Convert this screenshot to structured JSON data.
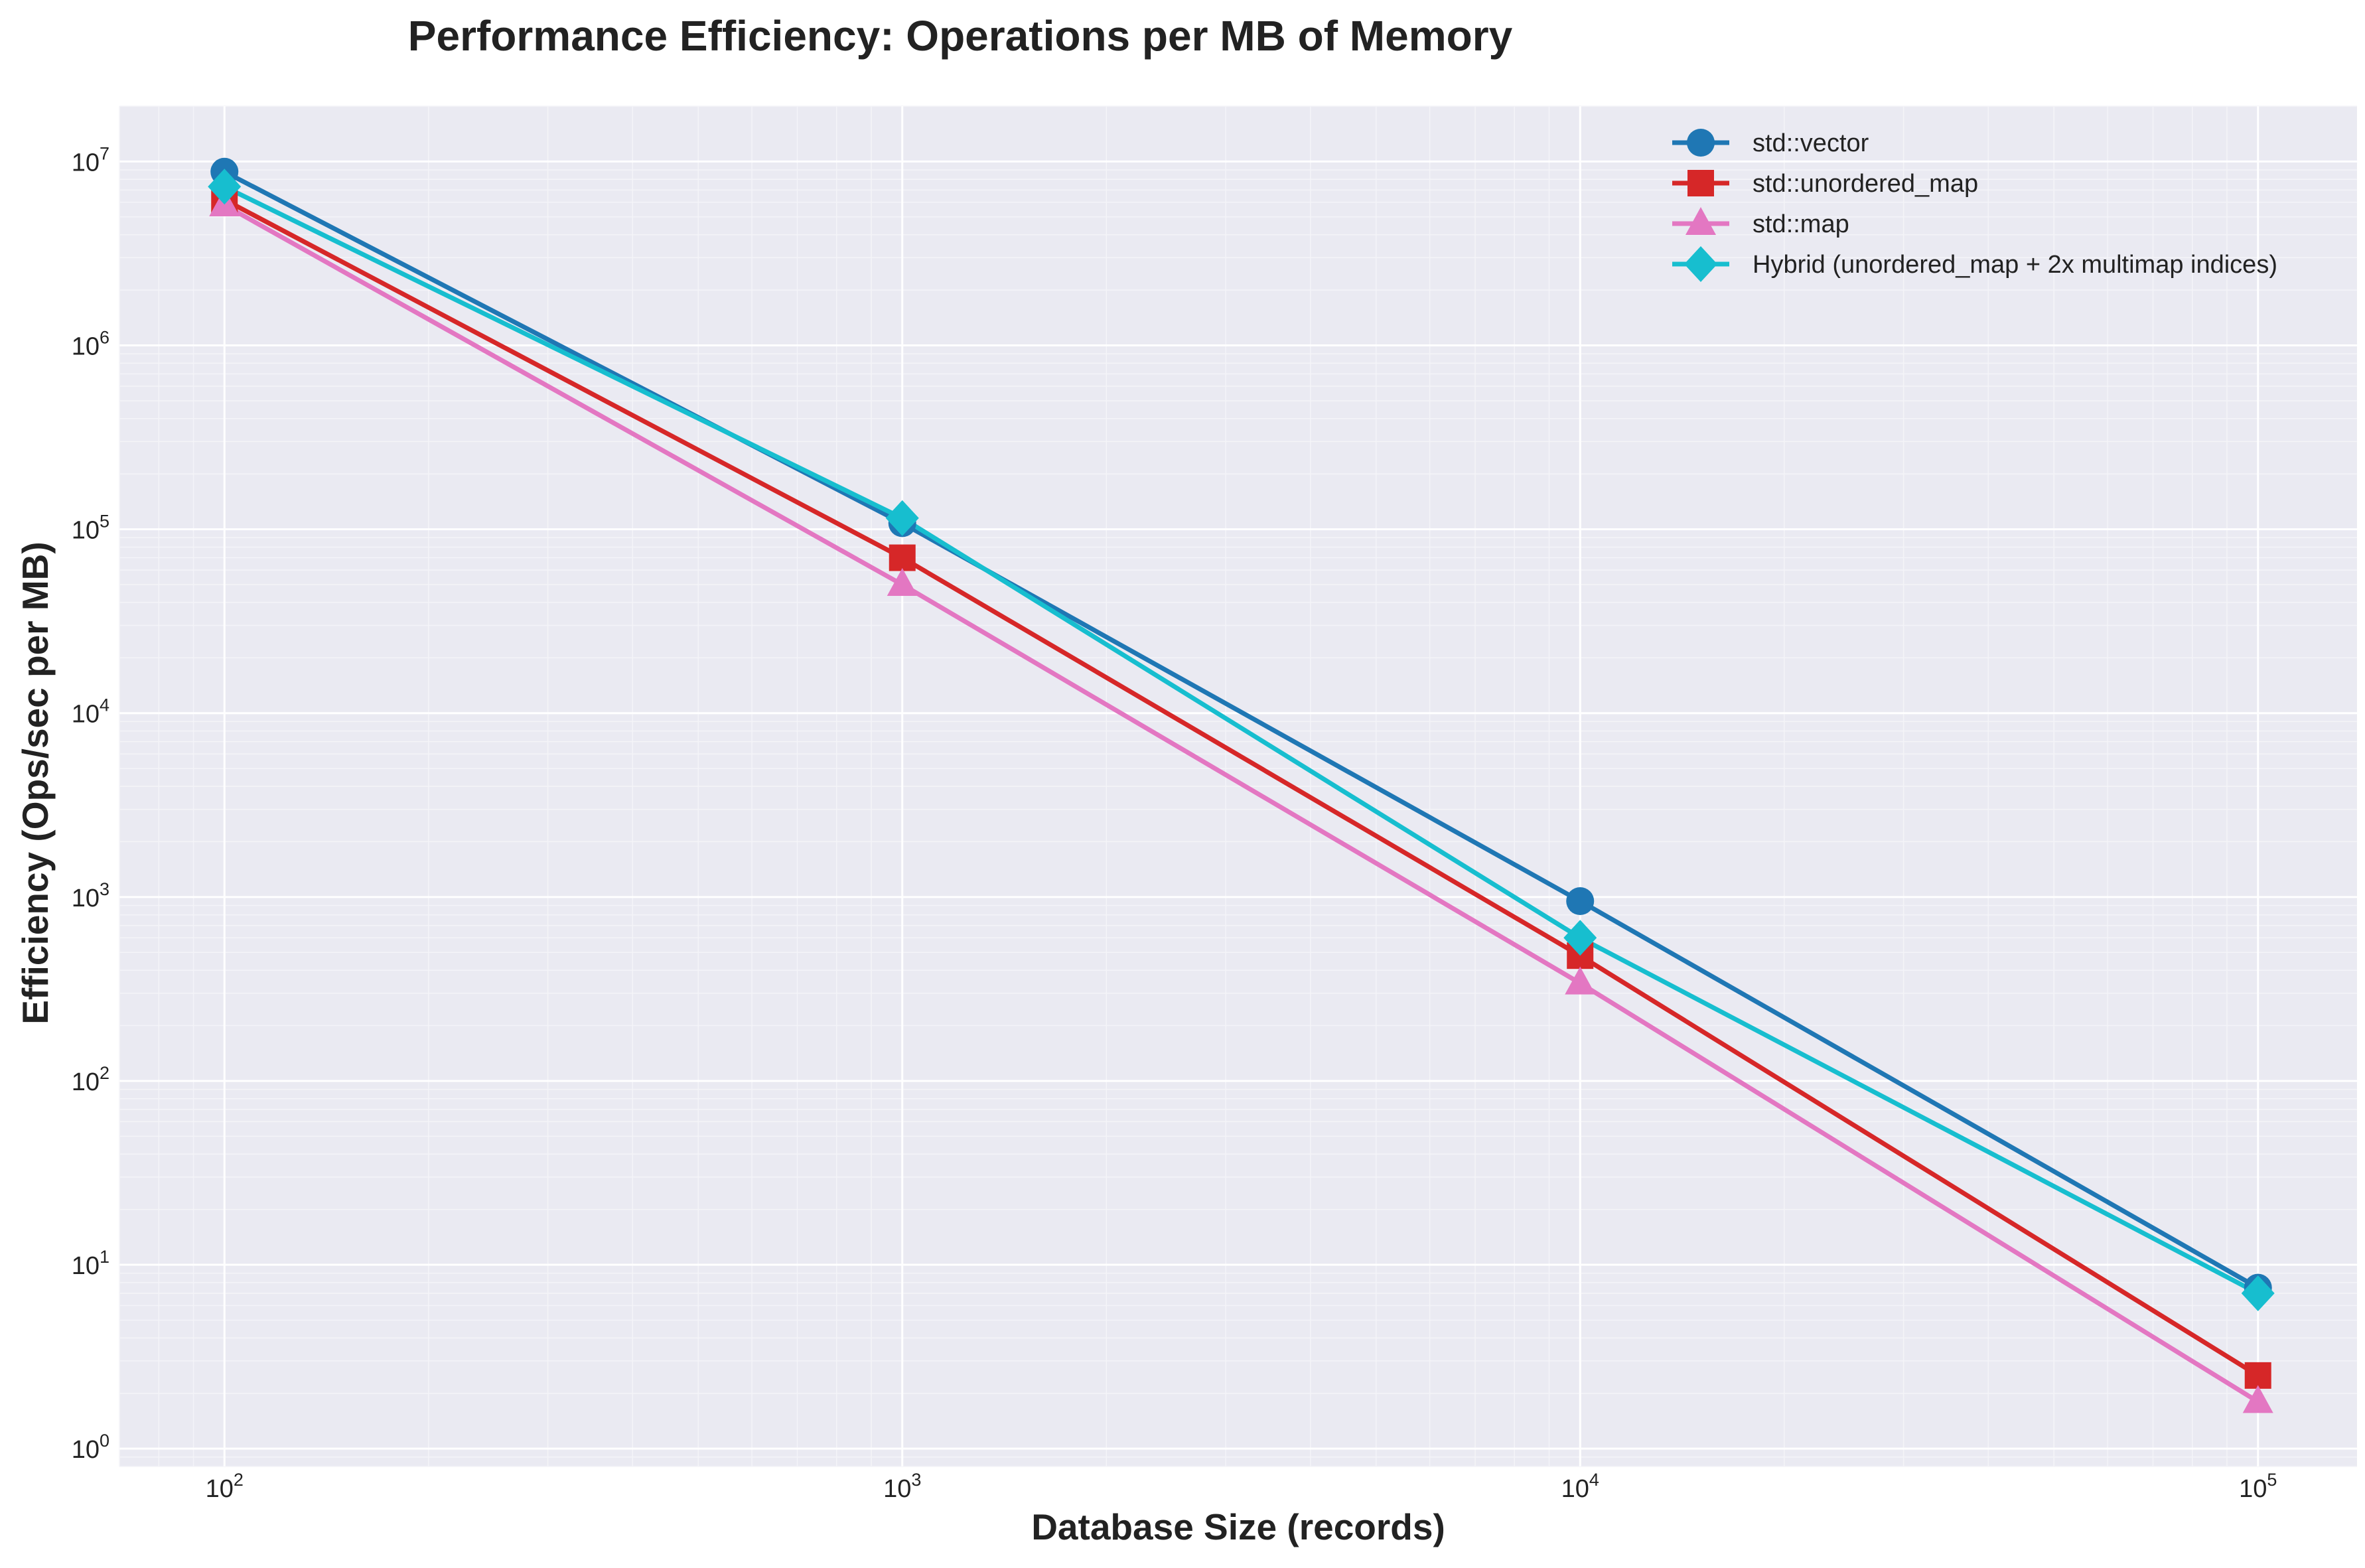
{
  "chart_data": {
    "type": "line",
    "title": "Performance Efficiency: Operations per MB of Memory",
    "xlabel": "Database Size (records)",
    "ylabel": "Efficiency (Ops/sec per MB)",
    "x_scale": "log",
    "y_scale": "log",
    "xlim": [
      70,
      140000
    ],
    "ylim": [
      0.8,
      20000000
    ],
    "x": [
      100,
      1000,
      10000,
      100000
    ],
    "x_ticks": [
      {
        "value": 100,
        "base": "10",
        "exp": "2"
      },
      {
        "value": 1000,
        "base": "10",
        "exp": "3"
      },
      {
        "value": 10000,
        "base": "10",
        "exp": "4"
      },
      {
        "value": 100000,
        "base": "10",
        "exp": "5"
      }
    ],
    "y_ticks": [
      {
        "value": 1,
        "base": "10",
        "exp": "0"
      },
      {
        "value": 10,
        "base": "10",
        "exp": "1"
      },
      {
        "value": 100,
        "base": "10",
        "exp": "2"
      },
      {
        "value": 1000,
        "base": "10",
        "exp": "3"
      },
      {
        "value": 10000,
        "base": "10",
        "exp": "4"
      },
      {
        "value": 100000,
        "base": "10",
        "exp": "5"
      },
      {
        "value": 1000000,
        "base": "10",
        "exp": "6"
      },
      {
        "value": 10000000,
        "base": "10",
        "exp": "7"
      }
    ],
    "grid": true,
    "legend_position": "top-right",
    "background_color": "#eaeaf2",
    "series": [
      {
        "name": "std::vector",
        "color": "#1f77b4",
        "marker": "circle",
        "values": [
          8800000,
          108000,
          950,
          7.5
        ]
      },
      {
        "name": "std::unordered_map",
        "color": "#d62728",
        "marker": "square",
        "values": [
          6200000,
          70000,
          480,
          2.5
        ]
      },
      {
        "name": "std::map",
        "color": "#e377c2",
        "marker": "triangle",
        "values": [
          5800000,
          50000,
          340,
          1.8
        ]
      },
      {
        "name": "Hybrid (unordered_map + 2x multimap indices)",
        "color": "#17becf",
        "marker": "diamond",
        "values": [
          7300000,
          115000,
          600,
          7.0
        ]
      }
    ]
  }
}
